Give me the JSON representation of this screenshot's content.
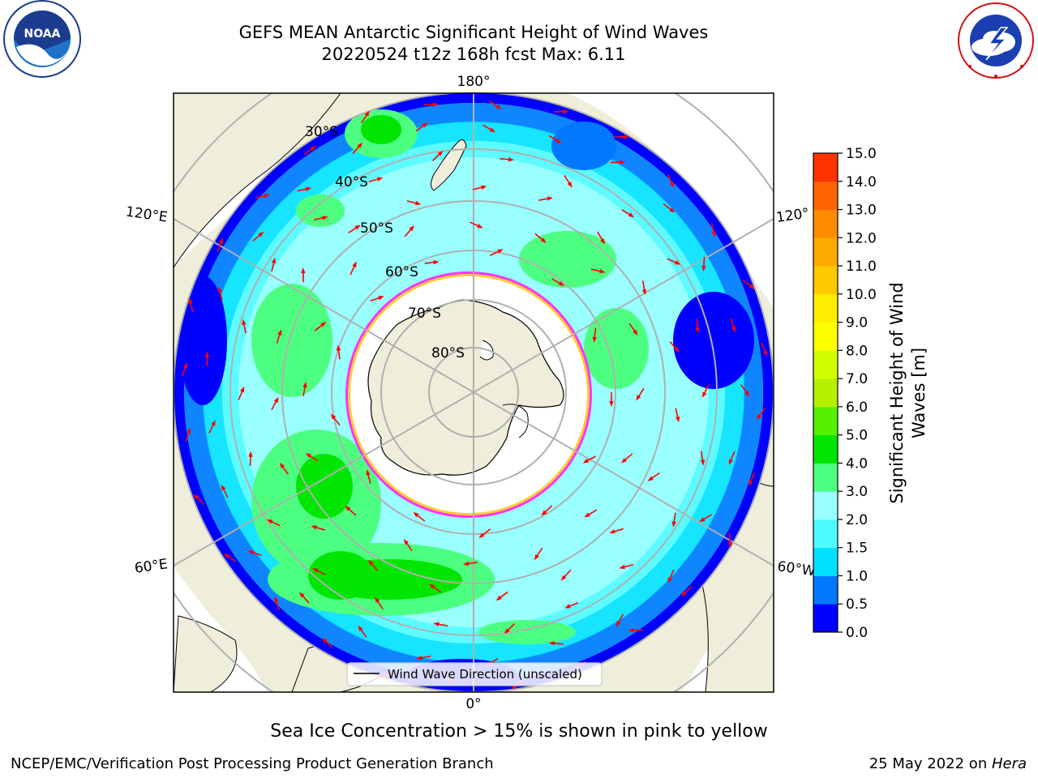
{
  "header": {
    "title_line1": "GEFS MEAN Antarctic Significant Height of Wind Waves",
    "title_line2": "20220524 t12z 168h fcst   Max: 6.11"
  },
  "logos": {
    "left": {
      "icon": "noaa-logo",
      "text": "NOAA",
      "ring_text": "NATIONAL OCEANIC AND ATMOSPHERIC ADMINISTRATION · U.S. DEPARTMENT OF COMMERCE"
    },
    "right": {
      "icon": "nws-logo",
      "ring_text": "NATIONAL WEATHER SERVICE"
    }
  },
  "map": {
    "projection": "south-polar-stereographic",
    "longitude_labels": {
      "top": "180°",
      "bottom": "0°",
      "left_upper": "120°E",
      "left_lower": "60°E",
      "right_upper": "120°",
      "right_lower": "60°W"
    },
    "latitude_labels": [
      "30°S",
      "40°S",
      "50°S",
      "60°S",
      "70°S",
      "80°S"
    ],
    "legend_label": "Wind Wave Direction (unscaled)",
    "land_color": "#efeedb",
    "ice_colors": [
      "#ff33ff",
      "#ffcc33"
    ]
  },
  "colorbar": {
    "label": "Significant Height of Wind Waves [m]",
    "label_line1": "Significant Height of Wind",
    "label_line2": "Waves [m]",
    "ticks": [
      "0.0",
      "0.5",
      "1.0",
      "1.5",
      "2.0",
      "3.0",
      "4.0",
      "5.0",
      "6.0",
      "7.0",
      "8.0",
      "9.0",
      "10.0",
      "11.0",
      "12.0",
      "13.0",
      "14.0",
      "15.0"
    ],
    "colors": [
      "#0000ff",
      "#0078ff",
      "#00e1ff",
      "#4dfaff",
      "#99ffff",
      "#4dff80",
      "#00e600",
      "#55f000",
      "#b4f000",
      "#d2ff00",
      "#ffff00",
      "#ffee00",
      "#ffc800",
      "#ffaa00",
      "#ff8c00",
      "#ff6400",
      "#ff3200"
    ]
  },
  "footer": {
    "note": "Sea Ice Concentration > 15% is shown in pink to yellow",
    "credit": "NCEP/EMC/Verification Post Processing Product Generation Branch",
    "date_prefix": "25 May 2022 on ",
    "machine": "Hera"
  }
}
